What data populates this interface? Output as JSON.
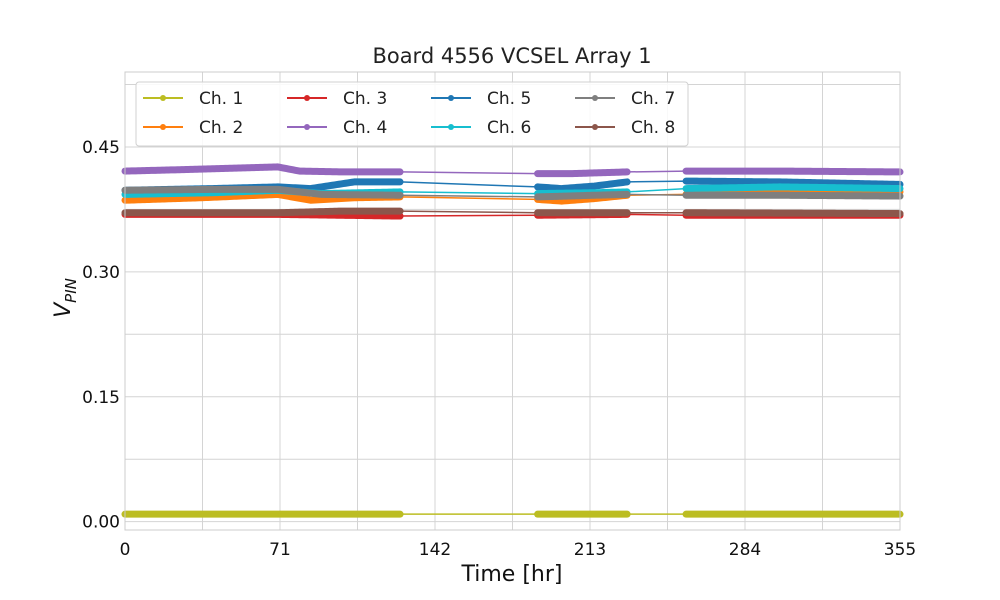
{
  "chart_data": {
    "type": "line",
    "title": "Board 4556 VCSEL Array 1",
    "xlabel": "Time [hr]",
    "ylabel_main": "V",
    "ylabel_sub": "PIN",
    "xlim": [
      0,
      355
    ],
    "ylim": [
      -0.01,
      0.54
    ],
    "xticks": [
      0,
      71,
      142,
      213,
      284,
      355
    ],
    "yticks": [
      0.0,
      0.15,
      0.3,
      0.45
    ],
    "ytick_labels": [
      "0.00",
      "0.15",
      "0.30",
      "0.45"
    ],
    "grid": true,
    "legend_position": "top-left",
    "segments": [
      [
        0,
        126
      ],
      [
        189,
        230
      ],
      [
        257,
        355
      ]
    ],
    "series": [
      {
        "name": "Ch. 1",
        "color": "#bcbd22",
        "x": [
          0,
          70,
          126,
          189,
          230,
          257,
          355
        ],
        "y": [
          0.009,
          0.009,
          0.009,
          0.009,
          0.009,
          0.009,
          0.009
        ]
      },
      {
        "name": "Ch. 2",
        "color": "#ff7f0e",
        "x": [
          0,
          35,
          70,
          85,
          105,
          126,
          189,
          200,
          215,
          230,
          257,
          300,
          355
        ],
        "y": [
          0.386,
          0.389,
          0.393,
          0.386,
          0.389,
          0.39,
          0.387,
          0.385,
          0.388,
          0.392,
          0.393,
          0.395,
          0.396
        ]
      },
      {
        "name": "Ch. 3",
        "color": "#d62728",
        "x": [
          0,
          70,
          126,
          189,
          230,
          257,
          355
        ],
        "y": [
          0.369,
          0.369,
          0.367,
          0.368,
          0.369,
          0.368,
          0.368
        ]
      },
      {
        "name": "Ch. 4",
        "color": "#9467bd",
        "x": [
          0,
          30,
          70,
          80,
          100,
          126,
          189,
          205,
          230,
          257,
          300,
          355
        ],
        "y": [
          0.421,
          0.423,
          0.426,
          0.421,
          0.42,
          0.42,
          0.418,
          0.418,
          0.42,
          0.421,
          0.421,
          0.42
        ]
      },
      {
        "name": "Ch. 5",
        "color": "#1f77b4",
        "x": [
          0,
          40,
          70,
          85,
          105,
          126,
          189,
          200,
          215,
          230,
          257,
          300,
          355
        ],
        "y": [
          0.398,
          0.4,
          0.402,
          0.4,
          0.408,
          0.408,
          0.402,
          0.4,
          0.403,
          0.408,
          0.409,
          0.408,
          0.405
        ]
      },
      {
        "name": "Ch. 6",
        "color": "#17becf",
        "x": [
          0,
          40,
          70,
          90,
          126,
          189,
          215,
          230,
          257,
          300,
          355
        ],
        "y": [
          0.393,
          0.395,
          0.398,
          0.394,
          0.396,
          0.394,
          0.395,
          0.396,
          0.4,
          0.402,
          0.4
        ]
      },
      {
        "name": "Ch. 7",
        "color": "#7f7f7f",
        "x": [
          0,
          40,
          70,
          90,
          126,
          189,
          215,
          230,
          257,
          300,
          355
        ],
        "y": [
          0.398,
          0.399,
          0.399,
          0.393,
          0.392,
          0.39,
          0.392,
          0.393,
          0.392,
          0.392,
          0.391
        ]
      },
      {
        "name": "Ch. 8",
        "color": "#8c564b",
        "x": [
          0,
          70,
          100,
          126,
          189,
          230,
          257,
          355
        ],
        "y": [
          0.371,
          0.371,
          0.373,
          0.373,
          0.371,
          0.371,
          0.371,
          0.37
        ]
      }
    ]
  }
}
